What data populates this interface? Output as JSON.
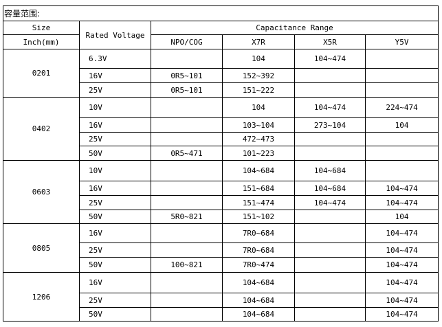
{
  "title": "容量范围:",
  "headers": {
    "size": "Size",
    "size_unit": "Inch(mm)",
    "rated_voltage": "Rated Voltage",
    "capacitance_range": "Capacitance Range",
    "dielectrics": [
      "NPO/COG",
      "X7R",
      "X5R",
      "Y5V"
    ]
  },
  "groups": [
    {
      "size": "0201",
      "rows": [
        {
          "voltage": "6.3V",
          "npo": "",
          "x7r": "104",
          "x5r": "104~474",
          "y5v": ""
        },
        {
          "voltage": "16V",
          "npo": "0R5~101",
          "x7r": "152~392",
          "x5r": "",
          "y5v": ""
        },
        {
          "voltage": "25V",
          "npo": "0R5~101",
          "x7r": "151~222",
          "x5r": "",
          "y5v": ""
        }
      ]
    },
    {
      "size": "0402",
      "rows": [
        {
          "voltage": "10V",
          "npo": "",
          "x7r": "104",
          "x5r": "104~474",
          "y5v": "224~474"
        },
        {
          "voltage": "16V",
          "npo": "",
          "x7r": "103~104",
          "x5r": "273~104",
          "y5v": "104"
        },
        {
          "voltage": "25V",
          "npo": "",
          "x7r": "472~473",
          "x5r": "",
          "y5v": ""
        },
        {
          "voltage": "50V",
          "npo": "0R5~471",
          "x7r": "101~223",
          "x5r": "",
          "y5v": ""
        }
      ]
    },
    {
      "size": "0603",
      "rows": [
        {
          "voltage": "10V",
          "npo": "",
          "x7r": "104~684",
          "x5r": "104~684",
          "y5v": ""
        },
        {
          "voltage": "16V",
          "npo": "",
          "x7r": "151~684",
          "x5r": "104~684",
          "y5v": "104~474"
        },
        {
          "voltage": "25V",
          "npo": "",
          "x7r": "151~474",
          "x5r": "104~474",
          "y5v": "104~474"
        },
        {
          "voltage": "50V",
          "npo": "5R0~821",
          "x7r": "151~102",
          "x5r": "",
          "y5v": "104"
        }
      ]
    },
    {
      "size": "0805",
      "rows": [
        {
          "voltage": "16V",
          "npo": "",
          "x7r": "7R0~684",
          "x5r": "",
          "y5v": "104~474"
        },
        {
          "voltage": "25V",
          "npo": "",
          "x7r": "7R0~684",
          "x5r": "",
          "y5v": "104~474"
        },
        {
          "voltage": "50V",
          "npo": "100~821",
          "x7r": "7R0~474",
          "x5r": "",
          "y5v": "104~474"
        }
      ]
    },
    {
      "size": "1206",
      "rows": [
        {
          "voltage": "16V",
          "npo": "",
          "x7r": "104~684",
          "x5r": "",
          "y5v": "104~474"
        },
        {
          "voltage": "25V",
          "npo": "",
          "x7r": "104~684",
          "x5r": "",
          "y5v": "104~474"
        },
        {
          "voltage": "50V",
          "npo": "",
          "x7r": "104~684",
          "x5r": "",
          "y5v": "104~474"
        }
      ]
    }
  ]
}
